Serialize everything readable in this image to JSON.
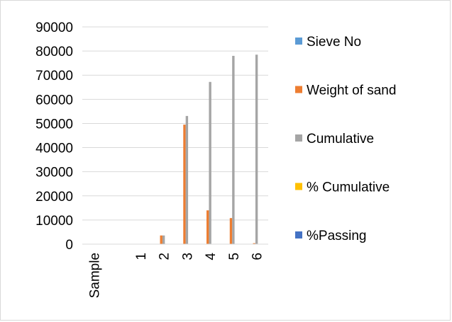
{
  "chart_data": {
    "type": "bar",
    "title": "",
    "xlabel": "",
    "ylabel": "",
    "ylim": [
      0,
      90000
    ],
    "yticks": [
      0,
      10000,
      20000,
      30000,
      40000,
      50000,
      60000,
      70000,
      80000,
      90000
    ],
    "grid": true,
    "legend_position": "right",
    "categories": [
      "Sample",
      "",
      "1",
      "2",
      "3",
      "4",
      "5",
      "6"
    ],
    "series": [
      {
        "name": "Sieve No",
        "color": "#5b9bd5",
        "values": [
          0,
          0,
          0,
          0,
          0,
          0,
          0,
          0
        ]
      },
      {
        "name": "Weight of sand",
        "color": "#ed7d31",
        "values": [
          0,
          0,
          0,
          3600,
          49500,
          14000,
          10800,
          400
        ]
      },
      {
        "name": "Cumulative",
        "color": "#a5a5a5",
        "values": [
          0,
          0,
          0,
          3600,
          53100,
          67200,
          78000,
          78500
        ]
      },
      {
        "name": "% Cumulative",
        "color": "#ffc000",
        "values": [
          0,
          0,
          0,
          0,
          0,
          0,
          0,
          0
        ]
      },
      {
        "name": "%Passing",
        "color": "#4472c4",
        "values": [
          0,
          0,
          0,
          0,
          0,
          0,
          0,
          0
        ]
      }
    ]
  }
}
